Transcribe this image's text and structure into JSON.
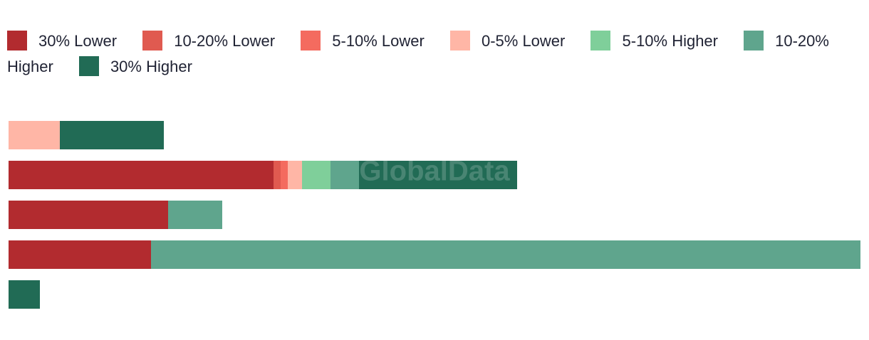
{
  "chart_data": {
    "type": "stacked-bar-horizontal",
    "watermark": "GlobalData",
    "categories": [
      null,
      null,
      null,
      null,
      null
    ],
    "series": [
      {
        "name": "30% Lower",
        "color": "#b22b2f",
        "values": [
          0,
          186,
          112,
          100,
          0
        ]
      },
      {
        "name": "10-20% Lower",
        "color": "#e05a50",
        "values": [
          0,
          5,
          0,
          0,
          0
        ]
      },
      {
        "name": "5-10% Lower",
        "color": "#f46b5f",
        "values": [
          0,
          5,
          0,
          0,
          0
        ]
      },
      {
        "name": "0-5% Lower",
        "color": "#ffb6a6",
        "values": [
          36,
          10,
          0,
          0,
          0
        ]
      },
      {
        "name": "5-10% Higher",
        "color": "#7fcf9a",
        "values": [
          0,
          20,
          0,
          0,
          0
        ]
      },
      {
        "name": "10-20% Higher",
        "color": "#5fa58d",
        "values": [
          0,
          20,
          38,
          498,
          0
        ]
      },
      {
        "name": "30% Higher",
        "color": "#216b55",
        "values": [
          73,
          111,
          0,
          0,
          22
        ]
      }
    ]
  }
}
